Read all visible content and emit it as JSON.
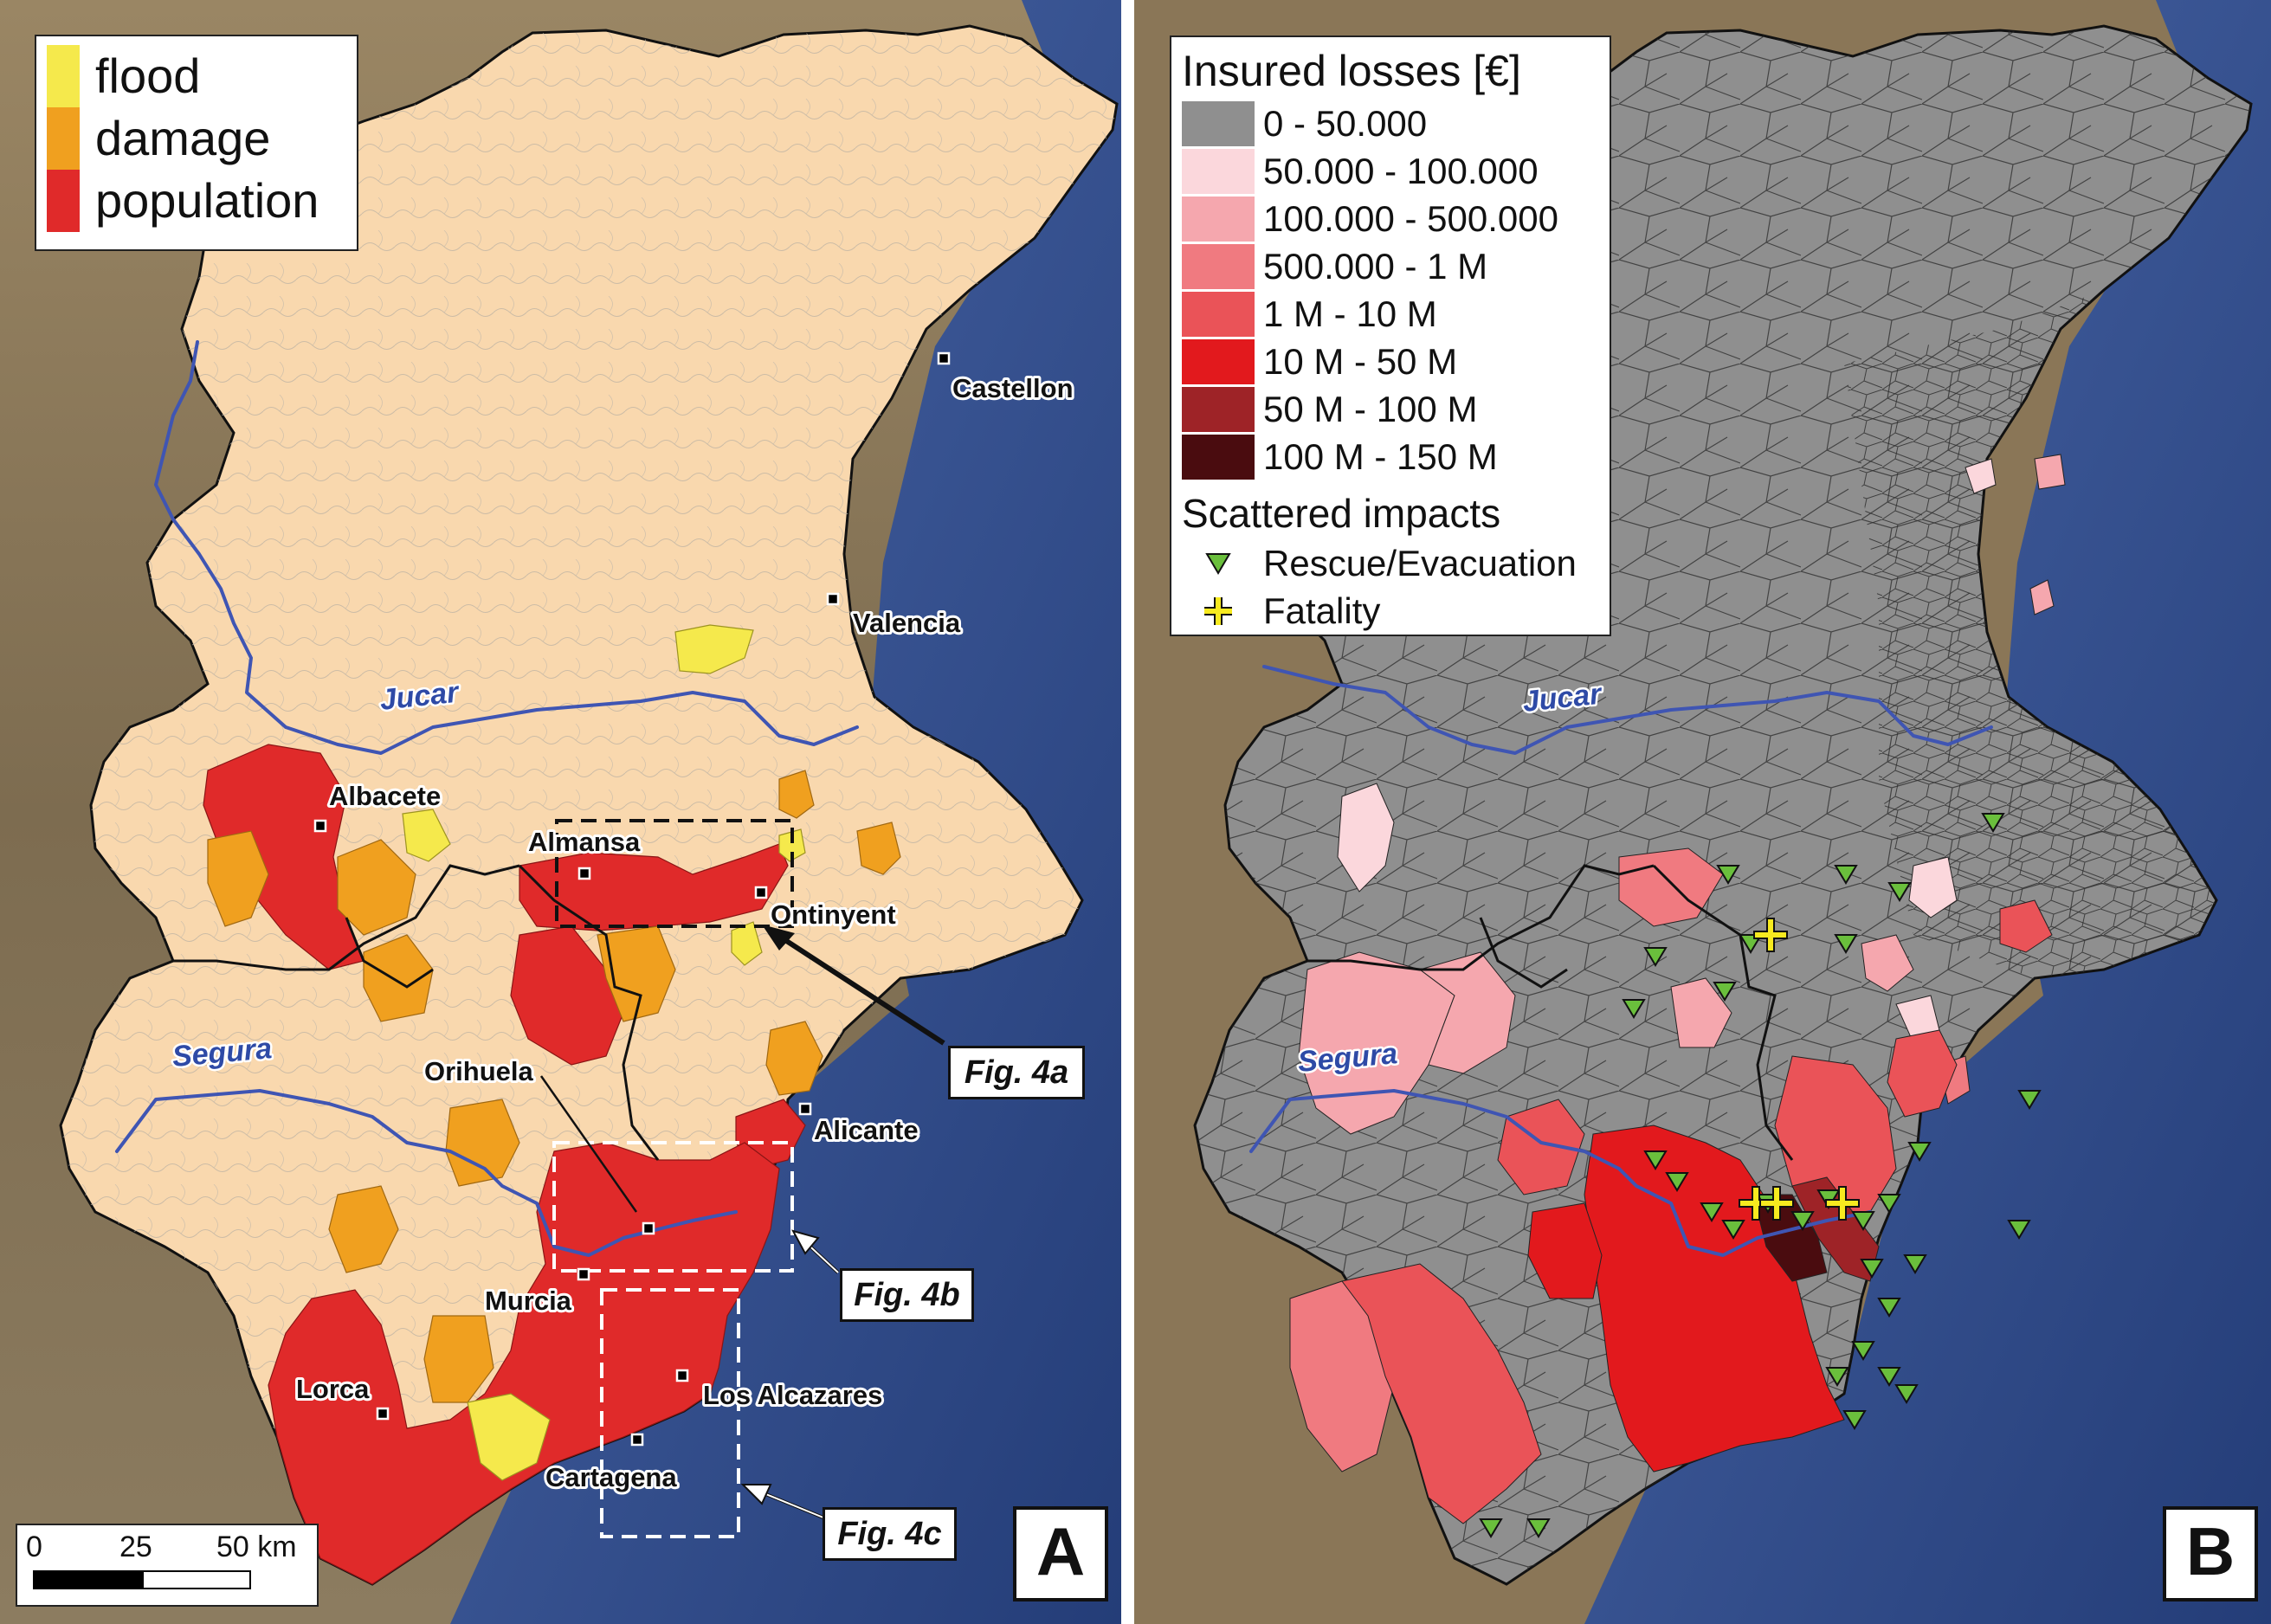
{
  "panel_a": {
    "letter": "A",
    "legend": {
      "items": [
        {
          "label": "flood",
          "color": "#f5e94c"
        },
        {
          "label": "damage",
          "color": "#f0a01f"
        },
        {
          "label": "population",
          "color": "#e02a2a"
        }
      ]
    },
    "cities": {
      "castellon": "Castellon",
      "valencia": "Valencia",
      "albacete": "Albacete",
      "almansa": "Almansa",
      "ontinyent": "Ontinyent",
      "orihuela": "Orihuela",
      "alicante": "Alicante",
      "murcia": "Murcia",
      "lorca": "Lorca",
      "los_alcazares": "Los Alcazares",
      "cartagena": "Cartagena"
    },
    "rivers": {
      "jucar": "Jucar",
      "segura": "Segura"
    },
    "figure_refs": {
      "fig4a": "Fig. 4a",
      "fig4b": "Fig. 4b",
      "fig4c": "Fig. 4c"
    },
    "scale_bar": {
      "ticks": [
        "0",
        "25",
        "50 km"
      ]
    }
  },
  "panel_b": {
    "letter": "B",
    "legend": {
      "title": "Insured losses [€]",
      "classes": [
        {
          "label": "0 - 50.000",
          "color": "#8f8f8f"
        },
        {
          "label": "50.000 - 100.000",
          "color": "#fbd7dc"
        },
        {
          "label": "100.000 - 500.000",
          "color": "#f5a7ae"
        },
        {
          "label": "500.000 - 1 M",
          "color": "#f07a80"
        },
        {
          "label": "1 M - 10 M",
          "color": "#ea5358"
        },
        {
          "label": "10 M - 50 M",
          "color": "#e2191d"
        },
        {
          "label": "50 M - 100 M",
          "color": "#9e2327"
        },
        {
          "label": "100 M - 150 M",
          "color": "#4a0c0f"
        }
      ],
      "impacts_title": "Scattered impacts",
      "impacts": [
        {
          "label": "Rescue/Evacuation",
          "icon": "green-triangle-icon",
          "color": "#6abf3c"
        },
        {
          "label": "Fatality",
          "icon": "yellow-cross-icon",
          "color": "#f7ea1f"
        }
      ]
    },
    "rivers": {
      "jucar": "Jucar",
      "segura": "Segura"
    }
  },
  "colors": {
    "basin_fill": "#f9d8ae",
    "muni_gray": "#8f8f8f",
    "sea": "#34508f",
    "land_bg": "#8a7657",
    "river": "#3f55b3",
    "boundary": "#111111"
  }
}
